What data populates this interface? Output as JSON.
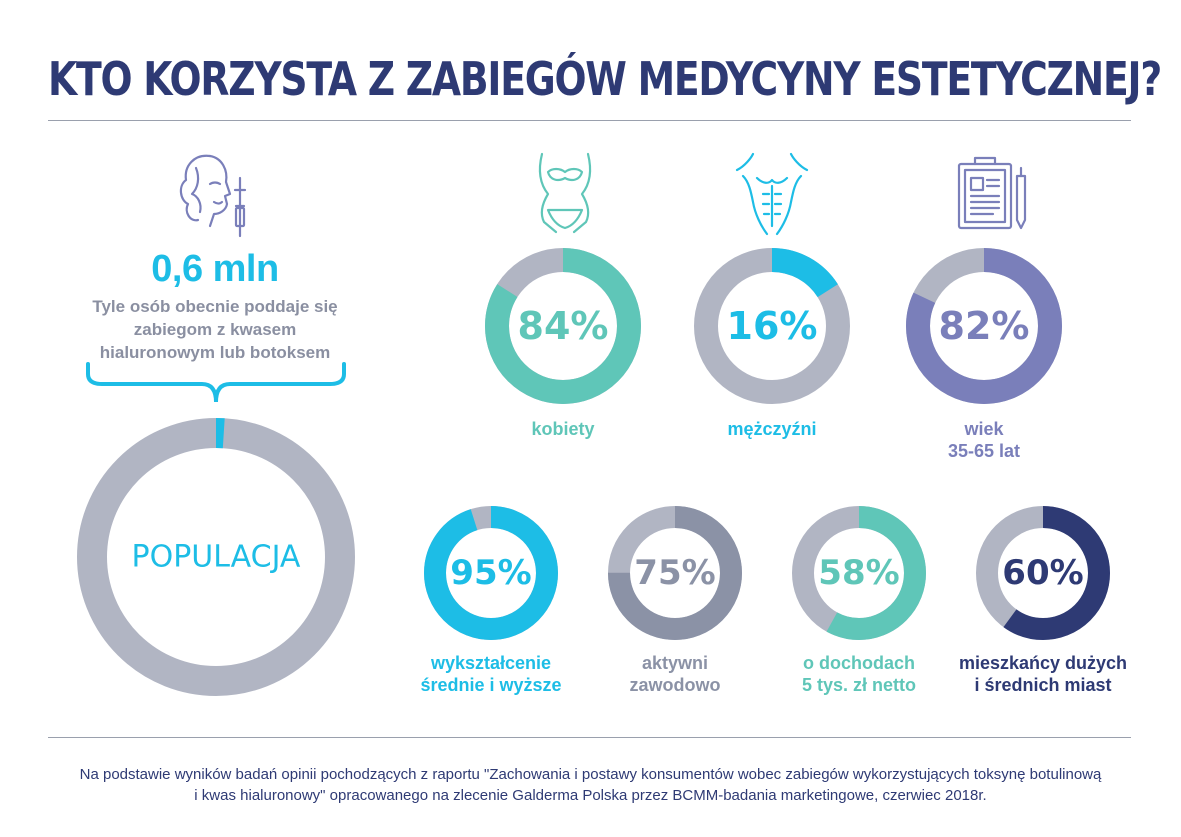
{
  "title": "KTO KORZYSTA Z ZABIEGÓW MEDYCYNY ESTETYCZNEJ?",
  "population": {
    "value": "0,6 mln",
    "description_lines": [
      "Tyle osób obecnie poddaje się",
      "zabiegom z kwasem",
      "hialuronowym lub botoksem"
    ],
    "center_label": "POPULACJA"
  },
  "colors": {
    "track": "#b1b5c3",
    "teal": "#5fc6b8",
    "cyan": "#1dbde6",
    "violet": "#7a7fba",
    "slate": "#8b92a6",
    "navy": "#2e3a74"
  },
  "icons": {
    "population": "woman-face-syringe-icon",
    "women": "female-body-icon",
    "men": "male-torso-icon",
    "age": "clipboard-id-icon"
  },
  "chart_data": [
    {
      "type": "pie",
      "values": [
        1,
        99
      ],
      "title": "",
      "center_label": "POPULACJA",
      "note": "0,6 mln"
    },
    {
      "type": "pie",
      "values": [
        84,
        16
      ],
      "center_label": "84%",
      "label_lines": [
        "kobiety"
      ]
    },
    {
      "type": "pie",
      "values": [
        16,
        84
      ],
      "center_label": "16%",
      "label_lines": [
        "mężczyźni"
      ]
    },
    {
      "type": "pie",
      "values": [
        82,
        18
      ],
      "center_label": "82%",
      "label_lines": [
        "wiek",
        "35-65 lat"
      ]
    },
    {
      "type": "pie",
      "values": [
        95,
        5
      ],
      "center_label": "95%",
      "label_lines": [
        "wykształcenie",
        "średnie i wyższe"
      ]
    },
    {
      "type": "pie",
      "values": [
        75,
        25
      ],
      "center_label": "75%",
      "label_lines": [
        "aktywni",
        "zawodowo"
      ]
    },
    {
      "type": "pie",
      "values": [
        58,
        42
      ],
      "center_label": "58%",
      "label_lines": [
        "o dochodach",
        "5 tys. zł netto"
      ]
    },
    {
      "type": "pie",
      "values": [
        60,
        40
      ],
      "center_label": "60%",
      "label_lines": [
        "mieszkańcy dużych",
        "i średnich miast"
      ]
    }
  ],
  "footnote_lines": [
    "Na podstawie wyników badań opinii pochodzących z raportu \"Zachowania i postawy konsumentów wobec zabiegów wykorzystujących toksynę botulinową",
    "i kwas hialuronowy\" opracowanego na zlecenie Galderma Polska przez BCMM-badania marketingowe, czerwiec 2018r."
  ]
}
